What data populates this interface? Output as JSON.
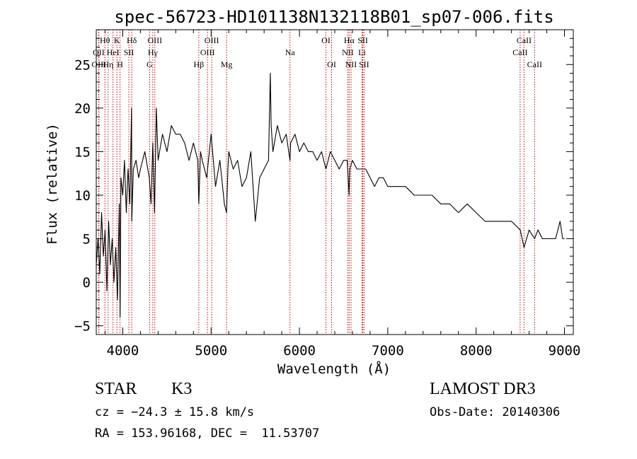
{
  "chart_data": {
    "type": "line",
    "title": "spec-56723-HD101138N132118B01_sp07-006.fits",
    "xlabel": "Wavelength (Å)",
    "ylabel": "Flux (relative)",
    "xlim": [
      3700,
      9100
    ],
    "ylim": [
      -6,
      29
    ],
    "xticks": [
      4000,
      5000,
      6000,
      7000,
      8000,
      9000
    ],
    "xtick_labels": [
      "4000",
      "5000",
      "6000",
      "7000",
      "8000",
      "9000"
    ],
    "yticks": [
      -5,
      0,
      5,
      10,
      15,
      20,
      25
    ],
    "ytick_labels": [
      "−5",
      "0",
      "5",
      "10",
      "15",
      "20",
      "25"
    ],
    "grid": false,
    "series": [
      {
        "name": "flux",
        "color": "#000000",
        "x": [
          3700,
          3720,
          3740,
          3760,
          3780,
          3800,
          3820,
          3840,
          3860,
          3880,
          3900,
          3920,
          3940,
          3960,
          3970,
          3980,
          4000,
          4020,
          4040,
          4060,
          4080,
          4100,
          4102,
          4120,
          4150,
          4180,
          4200,
          4250,
          4300,
          4320,
          4340,
          4360,
          4380,
          4400,
          4450,
          4500,
          4550,
          4600,
          4650,
          4700,
          4750,
          4800,
          4850,
          4861,
          4880,
          4900,
          4950,
          5000,
          5050,
          5100,
          5150,
          5175,
          5190,
          5200,
          5250,
          5300,
          5350,
          5400,
          5450,
          5500,
          5550,
          5600,
          5650,
          5670,
          5680,
          5700,
          5750,
          5800,
          5850,
          5893,
          5900,
          5950,
          6000,
          6050,
          6100,
          6150,
          6200,
          6250,
          6300,
          6350,
          6400,
          6450,
          6500,
          6540,
          6563,
          6570,
          6600,
          6650,
          6700,
          6750,
          6800,
          6850,
          6900,
          6950,
          7000,
          7100,
          7200,
          7300,
          7400,
          7500,
          7600,
          7700,
          7800,
          7900,
          8000,
          8100,
          8200,
          8300,
          8400,
          8500,
          8542,
          8600,
          8662,
          8700,
          8750,
          8800,
          8850,
          8900,
          8950,
          8980,
          9000
        ],
        "values": [
          2,
          5,
          1,
          8,
          3,
          6,
          -1,
          7,
          2,
          5,
          0,
          4,
          -2,
          9,
          -4,
          12,
          10,
          14,
          8,
          13,
          9,
          20,
          7,
          13,
          14,
          12,
          13,
          15,
          12,
          9,
          16,
          8,
          20,
          14,
          17,
          15,
          18,
          17,
          17,
          16,
          14,
          16,
          14,
          9,
          15,
          14,
          12,
          17,
          11,
          14,
          9,
          8,
          13,
          15,
          13,
          14,
          11,
          12,
          15,
          7,
          12,
          13,
          14,
          24,
          18,
          15,
          18,
          16,
          17,
          14,
          16,
          17,
          15,
          16,
          15,
          15,
          14,
          15,
          13,
          15,
          14,
          13,
          14,
          14,
          10,
          13,
          14,
          13,
          13,
          13,
          12,
          11,
          12,
          12,
          11,
          11,
          11,
          10,
          10,
          10,
          9,
          9,
          8,
          9,
          8,
          7,
          7,
          7,
          7,
          6,
          4,
          6,
          5,
          6,
          5,
          5,
          5,
          5,
          7,
          5,
          5
        ]
      }
    ],
    "lines": [
      {
        "name": "Hθ",
        "wavelength": 3798,
        "row": 1
      },
      {
        "name": "OII",
        "wavelength": 3727,
        "row": 2
      },
      {
        "name": "OIII",
        "wavelength": 3730,
        "row": 3
      },
      {
        "name": "K",
        "wavelength": 3934,
        "row": 1
      },
      {
        "name": "HeI",
        "wavelength": 3889,
        "row": 2
      },
      {
        "name": "Hη",
        "wavelength": 3835,
        "row": 3
      },
      {
        "name": "H",
        "wavelength": 3969,
        "row": 3
      },
      {
        "name": "Hδ",
        "wavelength": 4102,
        "row": 1
      },
      {
        "name": "SII",
        "wavelength": 4069,
        "row": 2
      },
      {
        "name": "OIII",
        "wavelength": 4363,
        "row": 1
      },
      {
        "name": "Hγ",
        "wavelength": 4340,
        "row": 2
      },
      {
        "name": "G",
        "wavelength": 4304,
        "row": 3
      },
      {
        "name": "OIII",
        "wavelength": 5007,
        "row": 1
      },
      {
        "name": "OIII",
        "wavelength": 4959,
        "row": 2
      },
      {
        "name": "Hβ",
        "wavelength": 4861,
        "row": 3
      },
      {
        "name": "Mg",
        "wavelength": 5175,
        "row": 3
      },
      {
        "name": "Na",
        "wavelength": 5893,
        "row": 2
      },
      {
        "name": "OI",
        "wavelength": 6300,
        "row": 1
      },
      {
        "name": "OI",
        "wavelength": 6364,
        "row": 3
      },
      {
        "name": "Hα",
        "wavelength": 6563,
        "row": 1
      },
      {
        "name": "NII",
        "wavelength": 6548,
        "row": 2
      },
      {
        "name": "NII",
        "wavelength": 6584,
        "row": 3
      },
      {
        "name": "SII",
        "wavelength": 6717,
        "row": 1
      },
      {
        "name": "Li",
        "wavelength": 6708,
        "row": 2
      },
      {
        "name": "SII",
        "wavelength": 6731,
        "row": 3
      },
      {
        "name": "CaII",
        "wavelength": 8542,
        "row": 1
      },
      {
        "name": "CaII",
        "wavelength": 8498,
        "row": 2
      },
      {
        "name": "CaII",
        "wavelength": 8662,
        "row": 3
      }
    ],
    "line_color": "#cc0000"
  },
  "info": {
    "object_class": "STAR",
    "subclass": "K3",
    "velocity": "cz = −24.3 ± 15.8 km/s",
    "coords": "RA = 153.96168, DEC =  11.53707",
    "survey": "LAMOST DR3",
    "obs_date": "Obs-Date: 20140306"
  }
}
